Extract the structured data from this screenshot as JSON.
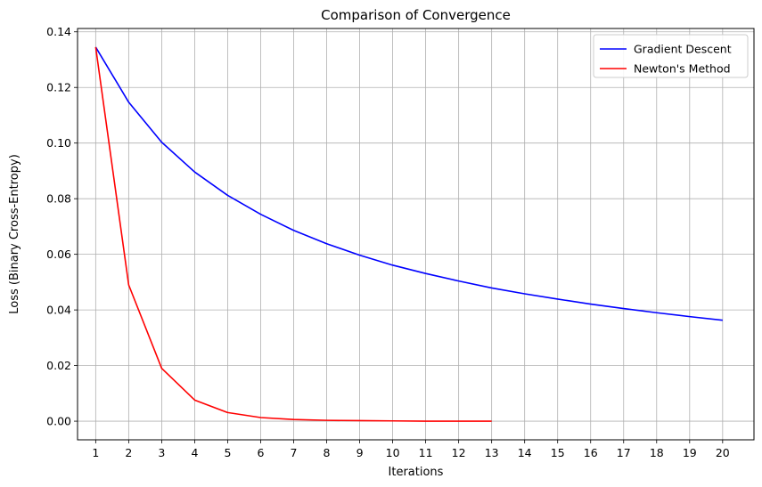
{
  "chart_data": {
    "type": "line",
    "title": "Comparison of Convergence",
    "xlabel": "Iterations",
    "ylabel": "Loss (Binary Cross-Entropy)",
    "xlim": [
      0.45,
      20.95
    ],
    "ylim": [
      -0.0067,
      0.1412
    ],
    "xticks": [
      1,
      2,
      3,
      4,
      5,
      6,
      7,
      8,
      9,
      10,
      11,
      12,
      13,
      14,
      15,
      16,
      17,
      18,
      19,
      20
    ],
    "yticks": [
      0.0,
      0.02,
      0.04,
      0.06,
      0.08,
      0.1,
      0.12,
      0.14
    ],
    "ytick_labels": [
      "0.00",
      "0.02",
      "0.04",
      "0.06",
      "0.08",
      "0.10",
      "0.12",
      "0.14"
    ],
    "grid": true,
    "legend_position": "top-right",
    "series": [
      {
        "name": "Gradient Descent",
        "color": "#0000ff",
        "x": [
          1,
          2,
          3,
          4,
          5,
          6,
          7,
          8,
          9,
          10,
          11,
          12,
          13,
          14,
          15,
          16,
          17,
          18,
          19,
          20
        ],
        "values": [
          0.1345,
          0.1147,
          0.1003,
          0.0896,
          0.0812,
          0.0744,
          0.0686,
          0.0638,
          0.0597,
          0.0561,
          0.0531,
          0.0504,
          0.0479,
          0.0458,
          0.0439,
          0.0421,
          0.0405,
          0.039,
          0.0376,
          0.0363
        ]
      },
      {
        "name": "Newton's Method",
        "color": "#ff0000",
        "x": [
          1,
          2,
          3,
          4,
          5,
          6,
          7,
          8,
          9,
          10,
          11,
          12,
          13
        ],
        "values": [
          0.1345,
          0.049,
          0.019,
          0.0076,
          0.0031,
          0.0013,
          0.0006,
          0.0003,
          0.0002,
          0.0001,
          0.0,
          0.0,
          0.0
        ]
      }
    ]
  }
}
